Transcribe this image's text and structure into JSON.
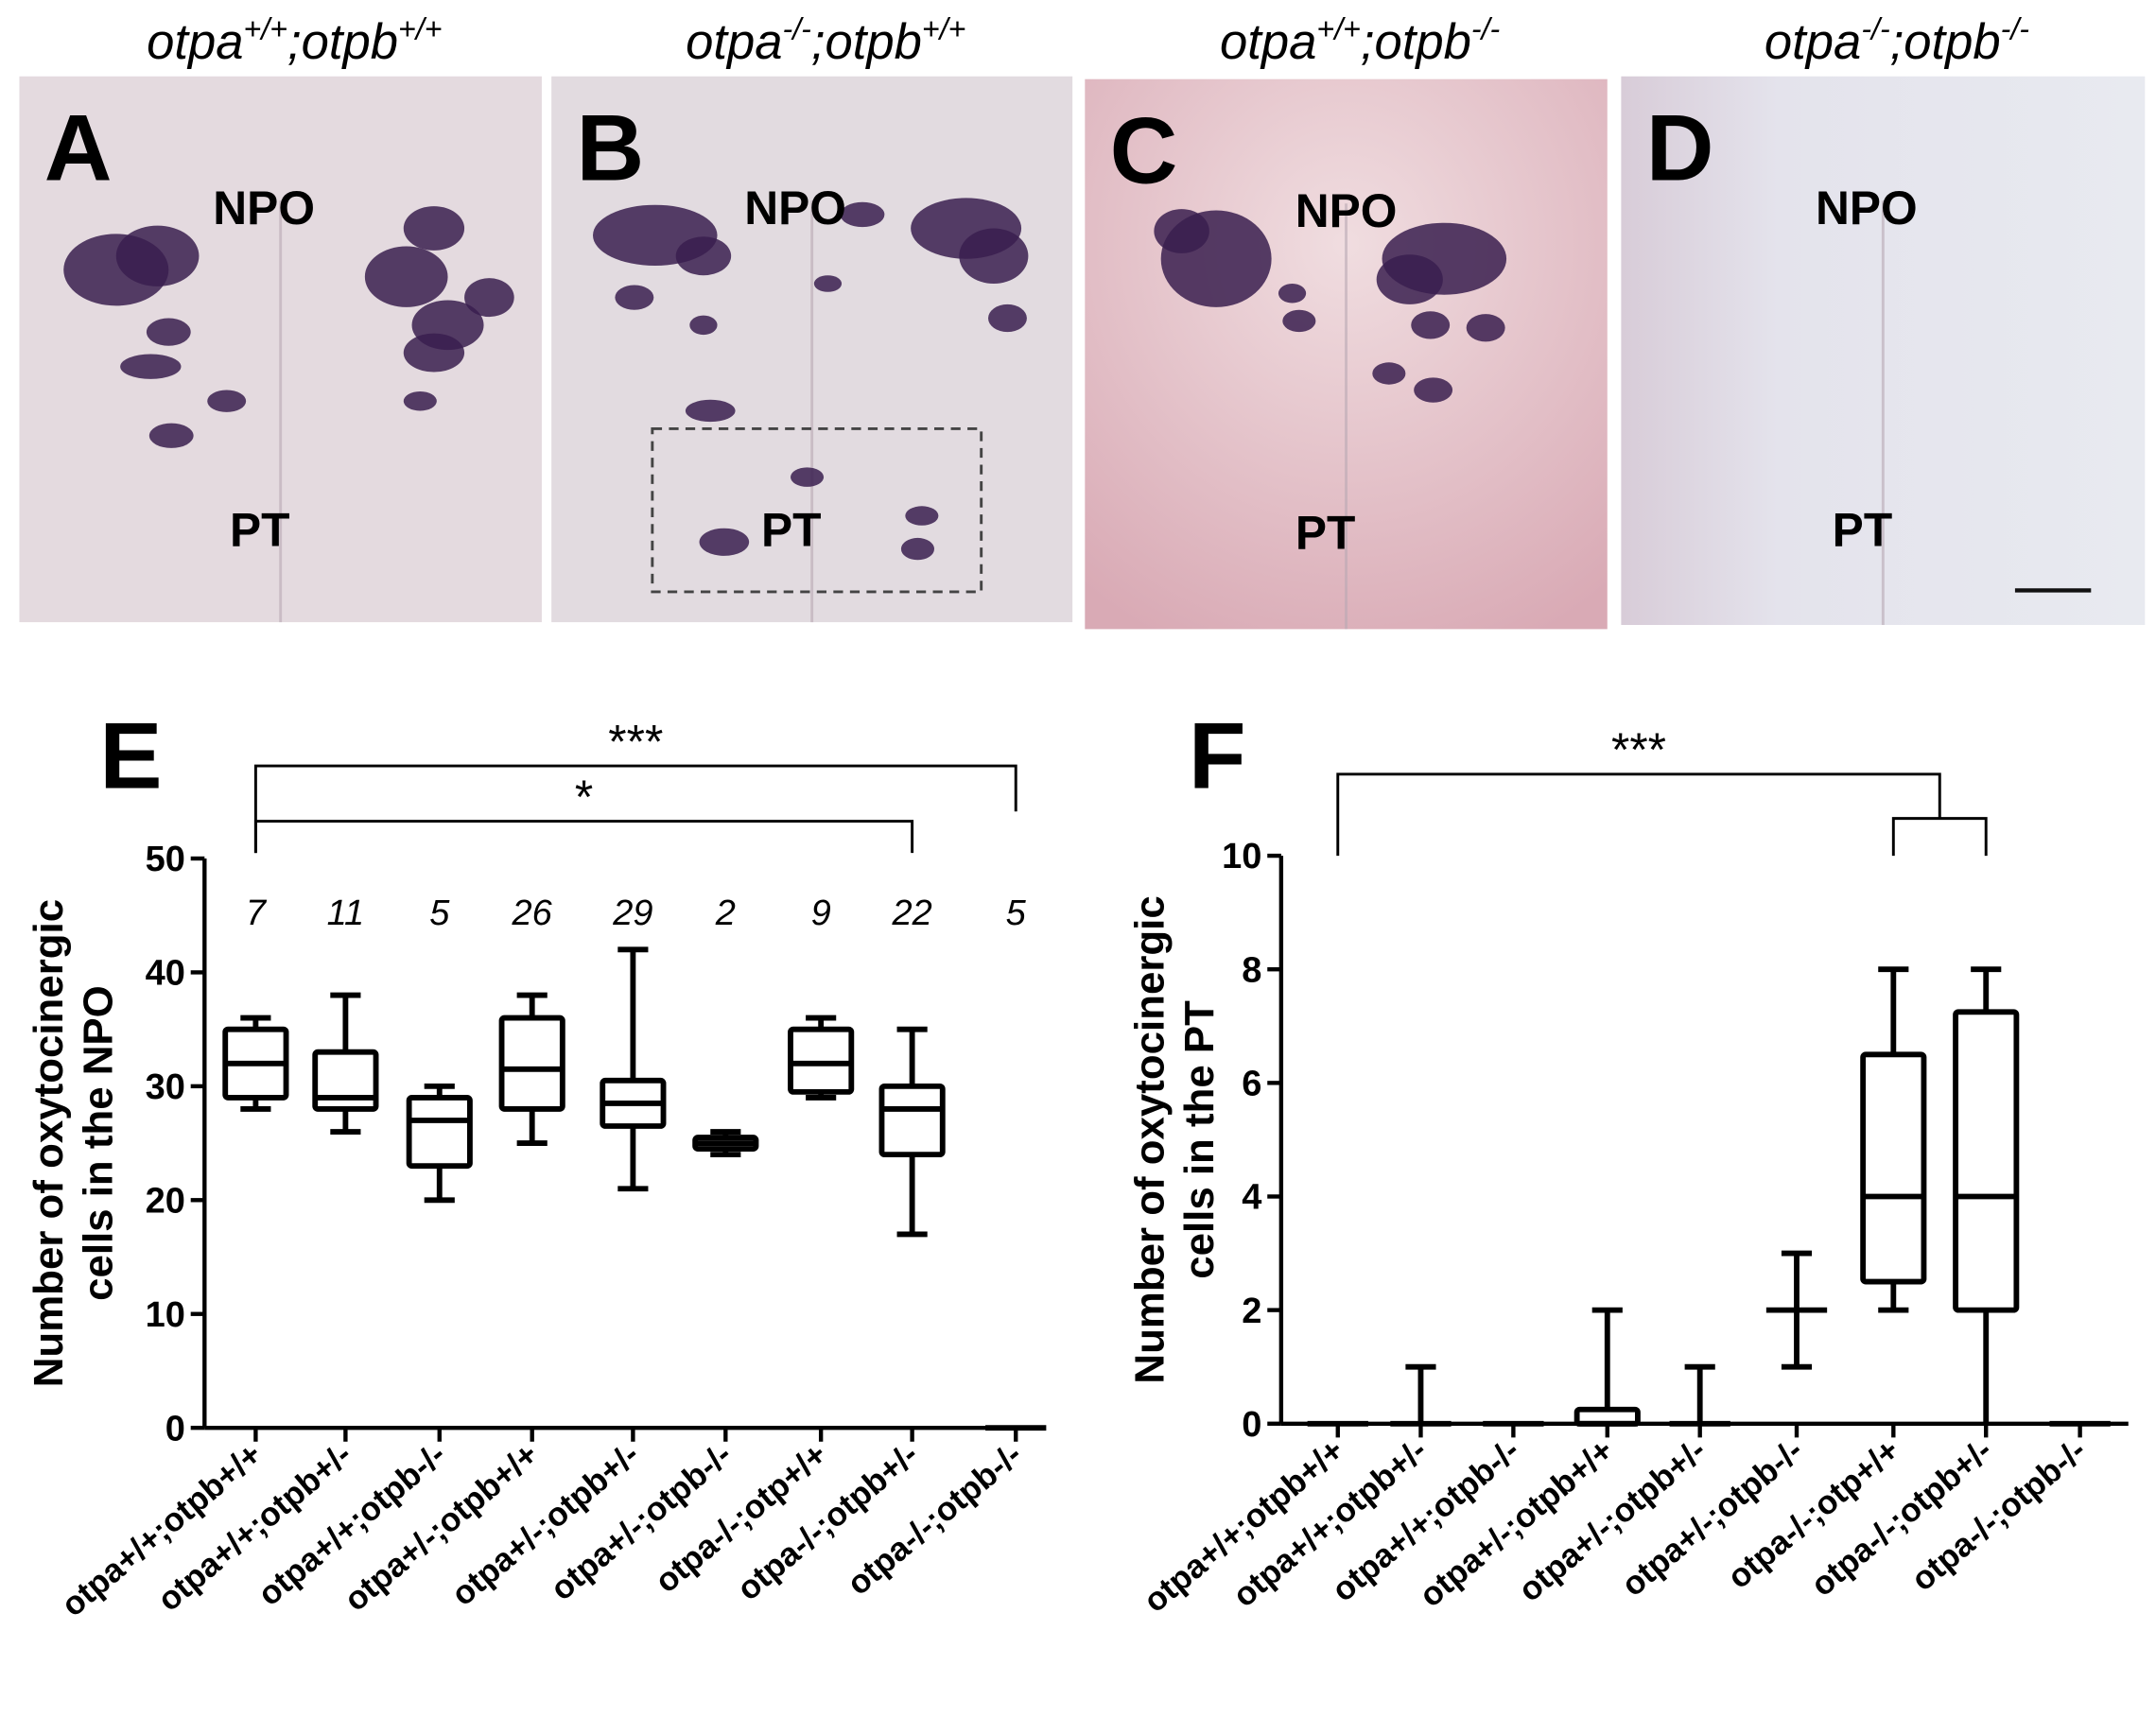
{
  "panels": [
    {
      "letter": "A",
      "title_base1": "otpa",
      "title_sup1": "+/+",
      "title_base2": ";otpb",
      "title_sup2": "+/+",
      "npo": "NPO",
      "pt": "PT",
      "bg": "#e4dadf"
    },
    {
      "letter": "B",
      "title_base1": "otpa",
      "title_sup1": "-/-",
      "title_base2": ";otpb",
      "title_sup2": "+/+",
      "npo": "NPO",
      "pt": "PT",
      "bg": "#e2dbe0"
    },
    {
      "letter": "C",
      "title_base1": "otpa",
      "title_sup1": "+/+",
      "title_base2": ";otpb",
      "title_sup2": "-/-",
      "npo": "NPO",
      "pt": "PT",
      "bg": "#e6c9cf"
    },
    {
      "letter": "D",
      "title_base1": "otpa",
      "title_sup1": "-/-",
      "title_base2": ";otpb",
      "title_sup2": "-/-",
      "npo": "NPO",
      "pt": "PT",
      "bg": "#e3e2ea"
    }
  ],
  "chart_data": [
    {
      "type": "box",
      "panel": "E",
      "ylabel_line1": "Number of oxytocinergic",
      "ylabel_line2": "cells in the NPO",
      "ylim": [
        0,
        50
      ],
      "yticks": [
        0,
        10,
        20,
        30,
        40,
        50
      ],
      "categories": [
        "otpa+/+;otpb+/+",
        "otpa+/+;otpb+/-",
        "otpa+/+;otpb-/-",
        "otpa+/-;otpb+/+",
        "otpa+/-;otpb+/-",
        "otpa+/-;otpb-/-",
        "otpa-/-;otp+/+",
        "otpa-/-;otpb+/-",
        "otpa-/-;otpb-/-"
      ],
      "n": [
        "7",
        "11",
        "5",
        "26",
        "29",
        "2",
        "9",
        "22",
        "5"
      ],
      "boxes": [
        [
          28,
          29,
          32,
          35,
          36
        ],
        [
          26,
          28,
          29,
          33,
          38
        ],
        [
          20,
          23,
          27,
          29,
          30
        ],
        [
          25,
          28,
          31.5,
          36,
          38
        ],
        [
          21,
          26.5,
          28.5,
          30.5,
          42
        ],
        [
          24,
          24.5,
          25,
          25.5,
          26
        ],
        [
          29,
          29.5,
          32,
          35,
          36
        ],
        [
          17,
          24,
          28,
          30,
          35
        ],
        [
          0,
          0,
          0,
          0,
          0
        ]
      ],
      "significance": [
        {
          "label": "***",
          "from": 0,
          "to": 8
        },
        {
          "label": "*",
          "from": 0,
          "to": 7
        }
      ]
    },
    {
      "type": "box",
      "panel": "F",
      "ylabel_line1": "Number of oxytocinergic",
      "ylabel_line2": "cells in the PT",
      "ylim": [
        0,
        10
      ],
      "yticks": [
        0,
        2,
        4,
        6,
        8,
        10
      ],
      "categories": [
        "otpa+/+;otpb+/+",
        "otpa+/+;otpb+/-",
        "otpa+/+;otpb-/-",
        "otpa+/-;otpb+/+",
        "otpa+/-;otpb+/-",
        "otpa+/-;otpb-/-",
        "otpa-/-;otp+/+",
        "otpa-/-;otpb+/-",
        "otpa-/-;otpb-/-"
      ],
      "boxes": [
        [
          0,
          0,
          0,
          0,
          0
        ],
        [
          0,
          0,
          0,
          0,
          1
        ],
        [
          0,
          0,
          0,
          0,
          0
        ],
        [
          0,
          0,
          0,
          0.25,
          2
        ],
        [
          0,
          0,
          0,
          0,
          1
        ],
        [
          1,
          2,
          2,
          2,
          3
        ],
        [
          2,
          2.5,
          4,
          6.5,
          8
        ],
        [
          0,
          2,
          4,
          7.25,
          8
        ],
        [
          0,
          0,
          0,
          0,
          0
        ]
      ],
      "significance": [
        {
          "label": "***",
          "from": 0,
          "to": [
            6,
            7
          ]
        }
      ]
    }
  ]
}
